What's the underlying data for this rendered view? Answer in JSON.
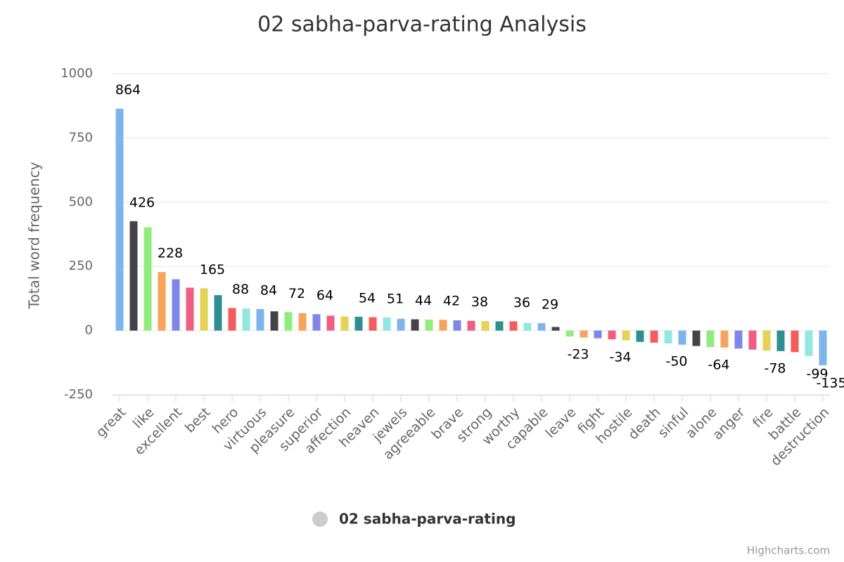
{
  "chart_data": {
    "type": "bar",
    "title": "02 sabha-parva-rating Analysis",
    "y_axis_label": "Total word frequency",
    "credits": "Highcharts.com",
    "categories": [
      "great",
      null,
      "like",
      null,
      "excellent",
      null,
      "best",
      null,
      "hero",
      null,
      "virtuous",
      null,
      "pleasure",
      null,
      "superior",
      null,
      "affection",
      null,
      "heaven",
      null,
      "jewels",
      null,
      "agreeable",
      null,
      "brave",
      null,
      "strong",
      null,
      "worthy",
      null,
      "capable",
      null,
      "leave",
      null,
      "fight",
      null,
      "hostile",
      null,
      "death",
      null,
      "sinful",
      null,
      "alone",
      null,
      "anger",
      null,
      "fire",
      null,
      "battle",
      null,
      "destruction"
    ],
    "series": [
      {
        "name": "02 sabha-parva-rating",
        "values": [
          864,
          426,
          402,
          228,
          200,
          167,
          165,
          138,
          88,
          86,
          84,
          75,
          72,
          68,
          64,
          58,
          55,
          54,
          52,
          51,
          46,
          44,
          43,
          42,
          40,
          38,
          37,
          36,
          36,
          30,
          29,
          14,
          -23,
          -27,
          -30,
          -34,
          -38,
          -44,
          -47,
          -50,
          -55,
          -60,
          -64,
          -66,
          -70,
          -74,
          -78,
          -80,
          -84,
          -99,
          -135
        ],
        "value_labels": [
          864,
          426,
          null,
          228,
          null,
          null,
          165,
          null,
          88,
          null,
          84,
          null,
          72,
          null,
          64,
          null,
          null,
          54,
          null,
          51,
          null,
          44,
          null,
          42,
          null,
          38,
          null,
          null,
          36,
          null,
          29,
          null,
          -23,
          null,
          null,
          -34,
          null,
          null,
          null,
          -50,
          null,
          null,
          -64,
          null,
          null,
          null,
          -78,
          null,
          null,
          -99,
          -135
        ]
      }
    ],
    "colors": [
      "#7cb5ec",
      "#434348",
      "#90ed7d",
      "#f7a35c",
      "#8085e9",
      "#f15c80",
      "#e4d354",
      "#2b908f",
      "#f45b5b",
      "#91e8e1"
    ],
    "legend_color": "#cccccc",
    "ylim": [
      -250,
      1000
    ],
    "yticks": [
      -250,
      0,
      250,
      500,
      750,
      1000
    ],
    "grid": true
  }
}
